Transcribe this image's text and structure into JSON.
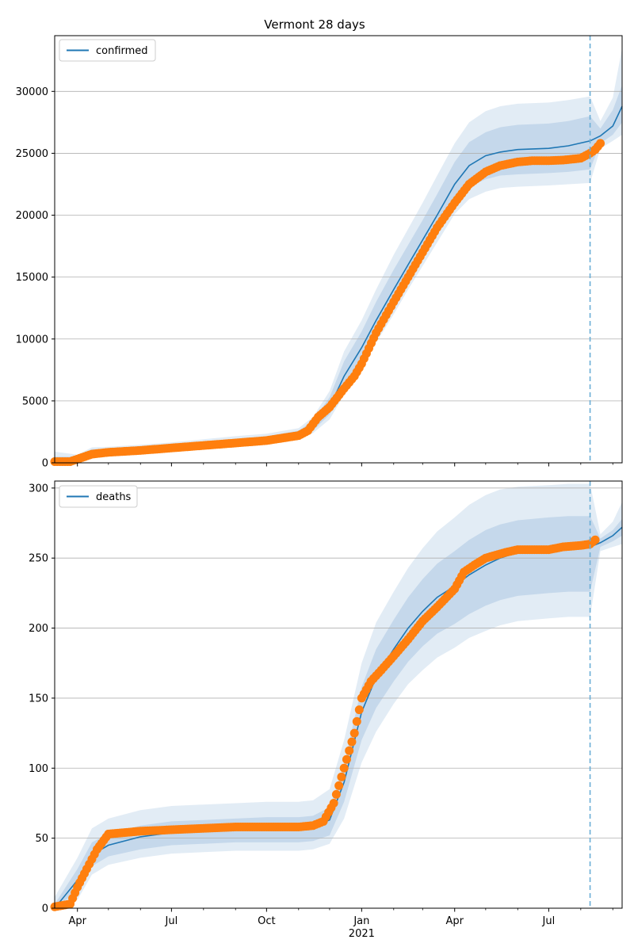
{
  "colors": {
    "model_line": "#1f77b4",
    "observed": "#ff7f0e",
    "band_light": "#dbe7f3",
    "band_mid": "#c6d8eb",
    "band_dark": "#b3cbe4",
    "grid": "#b0b0b0",
    "forecast_marker": "#6baed6"
  },
  "chart_data": [
    {
      "type": "line",
      "title": "Vermont 28 days",
      "ylim": [
        0,
        34500
      ],
      "yticks": [
        0,
        5000,
        10000,
        15000,
        20000,
        25000,
        30000
      ],
      "ytick_labels": [
        "0",
        "5000",
        "10000",
        "15000",
        "20000",
        "25000",
        "30000"
      ],
      "grid": "horizontal",
      "legend": {
        "label": "confirmed",
        "placement": "top-left"
      },
      "forecast_start": "2021-08-10",
      "x_range": [
        "2020-03-10",
        "2021-09-10"
      ],
      "model_series": {
        "name": "confirmed",
        "x": [
          "2020-03-10",
          "2020-04-01",
          "2020-04-15",
          "2020-05-01",
          "2020-06-01",
          "2020-07-01",
          "2020-08-01",
          "2020-09-01",
          "2020-10-01",
          "2020-11-01",
          "2020-11-15",
          "2020-12-01",
          "2020-12-15",
          "2021-01-01",
          "2021-01-15",
          "2021-02-01",
          "2021-02-15",
          "2021-03-01",
          "2021-03-15",
          "2021-04-01",
          "2021-04-15",
          "2021-05-01",
          "2021-05-15",
          "2021-06-01",
          "2021-07-01",
          "2021-07-20",
          "2021-08-10",
          "2021-08-20",
          "2021-09-01",
          "2021-09-10"
        ],
        "values": [
          0,
          300,
          800,
          900,
          1000,
          1200,
          1450,
          1700,
          1900,
          2300,
          2900,
          4500,
          7000,
          9300,
          11500,
          14000,
          16000,
          18000,
          20000,
          22500,
          24000,
          24800,
          25100,
          25300,
          25400,
          25600,
          26000,
          26400,
          27200,
          28800
        ],
        "bands": [
          {
            "lower": [
              0,
              200,
              600,
              700,
              850,
              1000,
              1200,
              1450,
              1650,
              2100,
              2600,
              3900,
              6000,
              8300,
              10400,
              12800,
              14800,
              16700,
              18700,
              21000,
              22300,
              22900,
              23200,
              23300,
              23400,
              23500,
              23700,
              25800,
              26500,
              27500
            ],
            "upper": [
              500,
              500,
              1100,
              1150,
              1250,
              1450,
              1700,
              1950,
              2150,
              2600,
              3400,
              5300,
              8200,
              10600,
              13000,
              15600,
              17600,
              19600,
              21700,
              24300,
              25900,
              26700,
              27100,
              27300,
              27400,
              27600,
              28000,
              27000,
              28500,
              30500
            ]
          },
          {
            "lower": [
              0,
              120,
              500,
              600,
              750,
              900,
              1100,
              1350,
              1550,
              1950,
              2400,
              3500,
              5500,
              7700,
              9700,
              12000,
              14000,
              15900,
              17800,
              20100,
              21300,
              21900,
              22200,
              22300,
              22400,
              22500,
              22600,
              25400,
              26000,
              26500
            ],
            "upper": [
              900,
              650,
              1250,
              1300,
              1450,
              1650,
              1900,
              2150,
              2350,
              2800,
              3700,
              5800,
              9000,
              11500,
              14000,
              16800,
              18900,
              21000,
              23200,
              25800,
              27500,
              28400,
              28800,
              29000,
              29100,
              29300,
              29600,
              27600,
              29500,
              33500
            ]
          }
        ]
      },
      "observed_series": {
        "name": "observed",
        "x": [
          "2020-03-10",
          "2020-03-25",
          "2020-04-01",
          "2020-04-15",
          "2020-05-01",
          "2020-06-01",
          "2020-07-01",
          "2020-08-01",
          "2020-09-01",
          "2020-10-01",
          "2020-11-01",
          "2020-11-10",
          "2020-11-20",
          "2020-12-01",
          "2020-12-15",
          "2020-12-25",
          "2021-01-01",
          "2021-01-15",
          "2021-02-01",
          "2021-02-15",
          "2021-03-01",
          "2021-03-15",
          "2021-04-01",
          "2021-04-15",
          "2021-05-01",
          "2021-05-15",
          "2021-06-01",
          "2021-06-15",
          "2021-07-01",
          "2021-07-15",
          "2021-08-01",
          "2021-08-10",
          "2021-08-15",
          "2021-08-20"
        ],
        "values": [
          100,
          100,
          300,
          700,
          850,
          1000,
          1200,
          1400,
          1600,
          1800,
          2200,
          2600,
          3700,
          4500,
          6000,
          7000,
          8000,
          10500,
          13000,
          15000,
          17000,
          19000,
          21000,
          22500,
          23500,
          24000,
          24300,
          24400,
          24400,
          24450,
          24600,
          25000,
          25300,
          25800
        ]
      }
    },
    {
      "type": "line",
      "title": "",
      "ylim": [
        0,
        305
      ],
      "yticks": [
        0,
        50,
        100,
        150,
        200,
        250,
        300
      ],
      "ytick_labels": [
        "0",
        "50",
        "100",
        "150",
        "200",
        "250",
        "300"
      ],
      "grid": "horizontal",
      "legend": {
        "label": "deaths",
        "placement": "top-left"
      },
      "forecast_start": "2021-08-10",
      "x_range": [
        "2020-03-10",
        "2021-09-10"
      ],
      "xtick_labels": [
        "Apr",
        "Jul",
        "Oct",
        "Jan\n2021",
        "Apr",
        "Jul"
      ],
      "xtick_dates": [
        "2020-04-01",
        "2020-07-01",
        "2020-10-01",
        "2021-01-01",
        "2021-04-01",
        "2021-07-01"
      ],
      "model_series": {
        "name": "deaths",
        "x": [
          "2020-03-10",
          "2020-04-01",
          "2020-04-15",
          "2020-05-01",
          "2020-06-01",
          "2020-07-01",
          "2020-08-01",
          "2020-09-01",
          "2020-10-01",
          "2020-11-01",
          "2020-11-15",
          "2020-12-01",
          "2020-12-15",
          "2021-01-01",
          "2021-01-15",
          "2021-02-01",
          "2021-02-15",
          "2021-03-01",
          "2021-03-15",
          "2021-04-01",
          "2021-04-15",
          "2021-05-01",
          "2021-05-15",
          "2021-06-01",
          "2021-07-01",
          "2021-07-20",
          "2021-08-10",
          "2021-08-20",
          "2021-09-01",
          "2021-09-10"
        ],
        "values": [
          0,
          20,
          38,
          45,
          51,
          54,
          55,
          56,
          57,
          57,
          58,
          63,
          90,
          140,
          165,
          185,
          200,
          212,
          222,
          230,
          238,
          245,
          250,
          254,
          256,
          257,
          258,
          261,
          266,
          272
        ],
        "bands": [
          {
            "lower": [
              0,
              12,
              30,
              37,
              42,
              45,
              46,
              47,
              47,
              47,
              48,
              52,
              76,
              120,
              143,
              162,
              176,
              187,
              196,
              203,
              210,
              216,
              220,
              223,
              225,
              226,
              226,
              258,
              262,
              266
            ],
            "upper": [
              3,
              28,
              47,
              53,
              59,
              62,
              63,
              64,
              65,
              65,
              66,
              72,
              103,
              158,
              185,
              206,
              222,
              235,
              246,
              255,
              263,
              270,
              274,
              277,
              279,
              280,
              280,
              264,
              270,
              278
            ]
          },
          {
            "lower": [
              0,
              6,
              24,
              31,
              36,
              39,
              40,
              41,
              41,
              41,
              42,
              46,
              64,
              104,
              126,
              146,
              160,
              170,
              179,
              186,
              193,
              198,
              202,
              205,
              207,
              208,
              208,
              255,
              258,
              260
            ],
            "upper": [
              8,
              36,
              57,
              64,
              70,
              73,
              74,
              75,
              76,
              76,
              77,
              85,
              120,
              175,
              204,
              226,
              243,
              257,
              269,
              279,
              288,
              295,
              299,
              301,
              302,
              303,
              303,
              267,
              276,
              290
            ]
          }
        ]
      },
      "observed_series": {
        "name": "observed",
        "x": [
          "2020-03-10",
          "2020-03-25",
          "2020-04-01",
          "2020-04-10",
          "2020-04-20",
          "2020-05-01",
          "2020-06-01",
          "2020-07-01",
          "2020-08-01",
          "2020-09-01",
          "2020-10-01",
          "2020-11-01",
          "2020-11-15",
          "2020-11-25",
          "2020-12-05",
          "2020-12-15",
          "2020-12-25",
          "2021-01-01",
          "2021-01-10",
          "2021-01-20",
          "2021-02-01",
          "2021-02-15",
          "2021-03-01",
          "2021-03-15",
          "2021-04-01",
          "2021-04-10",
          "2021-04-20",
          "2021-05-01",
          "2021-05-20",
          "2021-06-01",
          "2021-07-01",
          "2021-07-15",
          "2021-08-01",
          "2021-08-10",
          "2021-08-15"
        ],
        "values": [
          1,
          3,
          15,
          28,
          42,
          53,
          55,
          56,
          57,
          58,
          58,
          58,
          59,
          62,
          75,
          100,
          125,
          150,
          162,
          170,
          180,
          192,
          205,
          215,
          228,
          240,
          245,
          250,
          254,
          256,
          256,
          258,
          259,
          260,
          263
        ]
      }
    }
  ]
}
